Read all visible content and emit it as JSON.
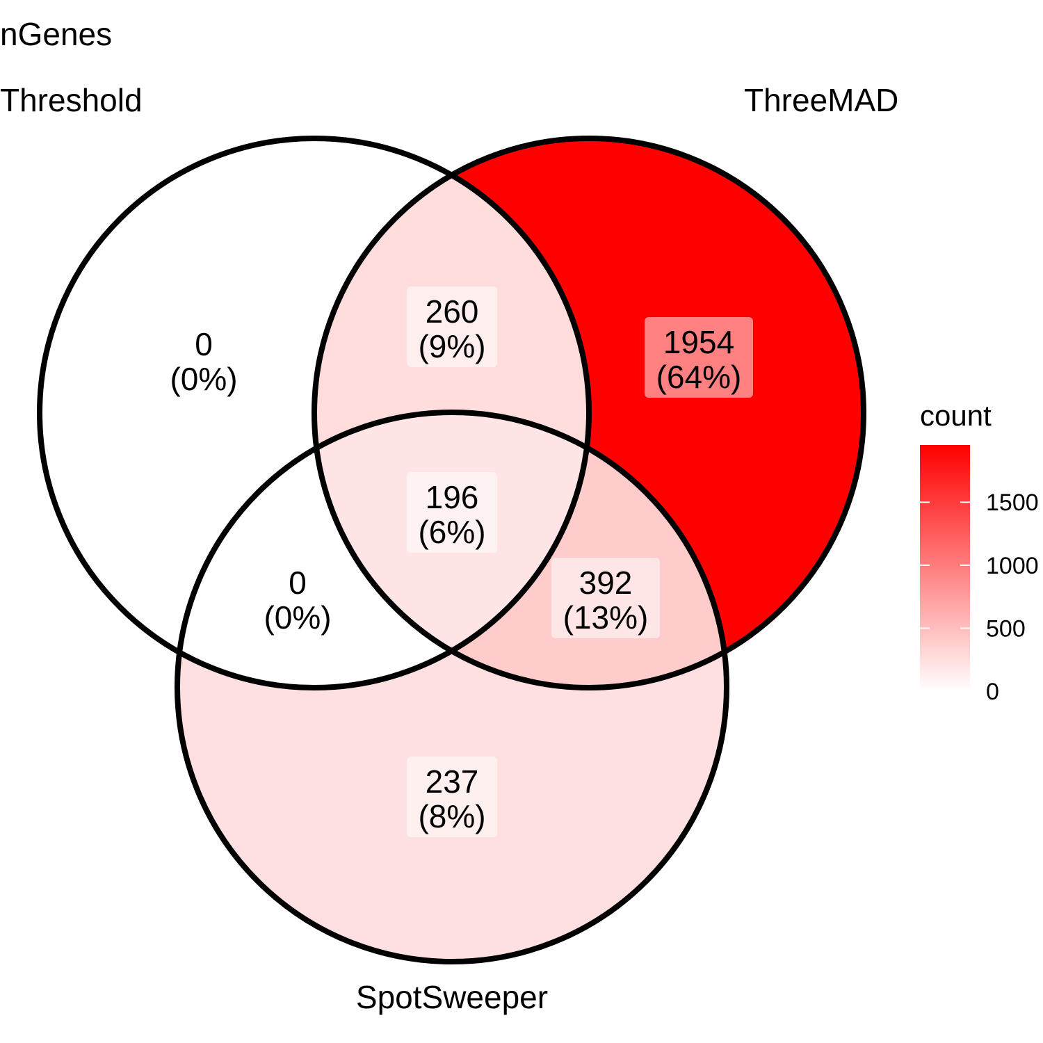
{
  "chart_data": {
    "type": "venn",
    "title": "nGenes",
    "sets": [
      "Threshold",
      "ThreeMAD",
      "SpotSweeper"
    ],
    "regions": [
      {
        "sets": [
          "Threshold"
        ],
        "count": 0,
        "percent": "(0%)"
      },
      {
        "sets": [
          "Threshold",
          "ThreeMAD"
        ],
        "count": 260,
        "percent": "(9%)"
      },
      {
        "sets": [
          "ThreeMAD"
        ],
        "count": 1954,
        "percent": "(64%)"
      },
      {
        "sets": [
          "Threshold",
          "ThreeMAD",
          "SpotSweeper"
        ],
        "count": 196,
        "percent": "(6%)"
      },
      {
        "sets": [
          "Threshold",
          "SpotSweeper"
        ],
        "count": 0,
        "percent": "(0%)"
      },
      {
        "sets": [
          "ThreeMAD",
          "SpotSweeper"
        ],
        "count": 392,
        "percent": "(13%)"
      },
      {
        "sets": [
          "SpotSweeper"
        ],
        "count": 237,
        "percent": "(8%)"
      }
    ],
    "legend": {
      "title": "count",
      "ticks": [
        0,
        500,
        1000,
        1500
      ],
      "range": [
        0,
        1954
      ],
      "low_color": "#ffffff",
      "high_color": "#ff0000",
      "placement": "right"
    }
  }
}
